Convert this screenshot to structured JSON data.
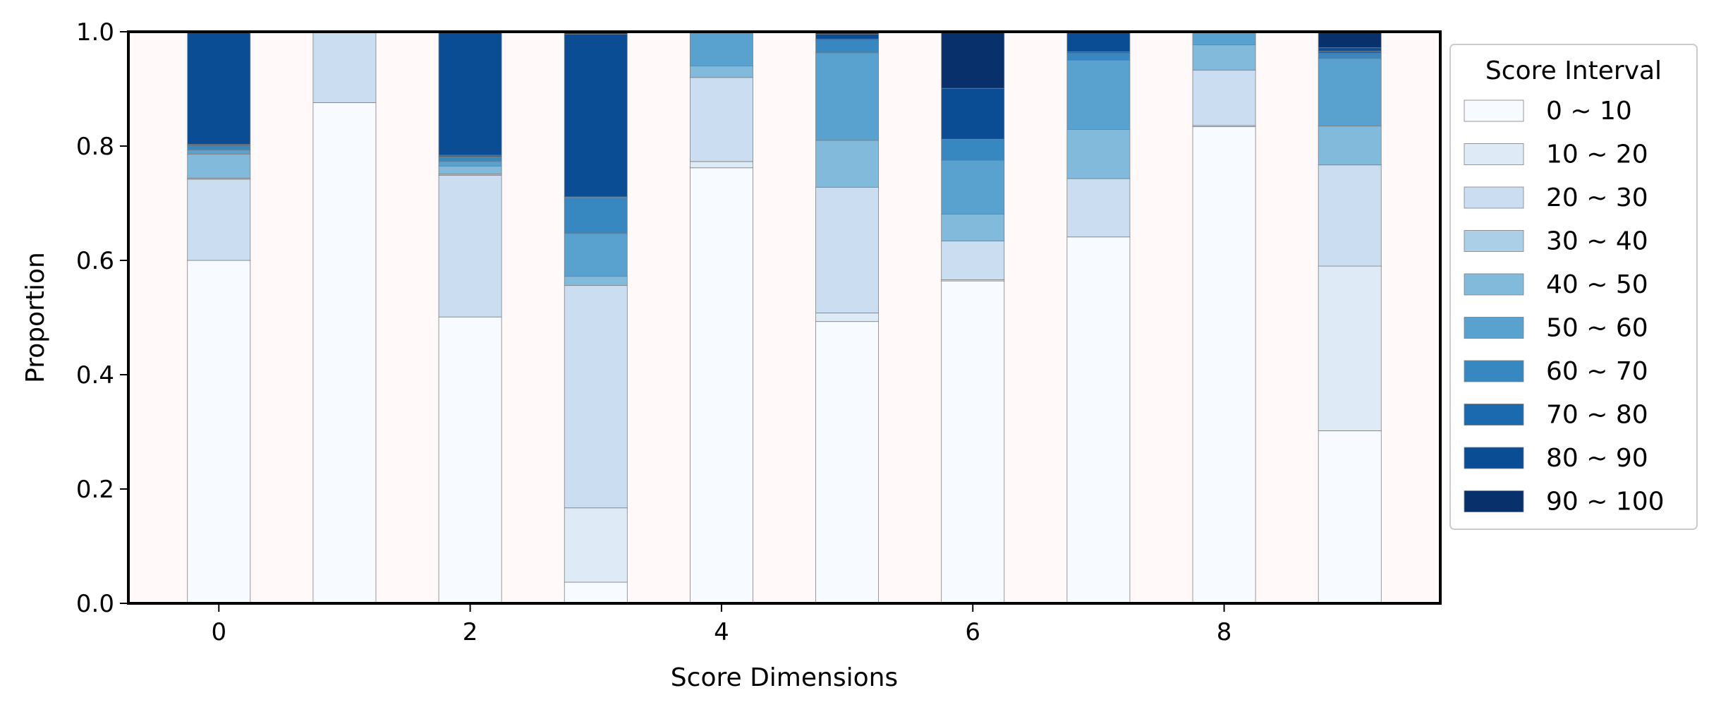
{
  "chart_data": {
    "type": "bar",
    "stacked": true,
    "normalized": true,
    "x": [
      0,
      1,
      2,
      3,
      4,
      5,
      6,
      7,
      8,
      9
    ],
    "xticks": [
      "0",
      "2",
      "4",
      "6",
      "8"
    ],
    "yticks": [
      "0.0",
      "0.2",
      "0.4",
      "0.6",
      "0.8",
      "1.0"
    ],
    "xlabel": "Score Dimensions",
    "ylabel": "Proportion",
    "ylim": [
      0,
      1
    ],
    "xlim": [
      -0.72,
      9.72
    ],
    "grid": false,
    "plot_background": "#fff9f9",
    "legend": {
      "title": "Score Interval",
      "placement": "right-outside-top"
    },
    "series": [
      {
        "name": "0 ~ 10",
        "color": "#f7fbff",
        "values": [
          0.6,
          0.876,
          0.501,
          0.037,
          0.762,
          0.493,
          0.564,
          0.641,
          0.834,
          0.302
        ]
      },
      {
        "name": "10 ~ 20",
        "color": "#deebf7",
        "values": [
          0.0,
          0.0,
          0.0,
          0.13,
          0.011,
          0.015,
          0.002,
          0.0,
          0.002,
          0.288
        ]
      },
      {
        "name": "20 ~ 30",
        "color": "#cbdef1",
        "values": [
          0.142,
          0.124,
          0.248,
          0.389,
          0.147,
          0.22,
          0.068,
          0.102,
          0.097,
          0.177
        ]
      },
      {
        "name": "30 ~ 40",
        "color": "#abcfe6",
        "values": [
          0.002,
          0.0,
          0.002,
          0.0,
          0.0,
          0.0,
          0.0,
          0.0,
          0.0,
          0.0
        ]
      },
      {
        "name": "40 ~ 50",
        "color": "#82badb",
        "values": [
          0.042,
          0.0,
          0.014,
          0.016,
          0.02,
          0.082,
          0.047,
          0.086,
          0.044,
          0.068
        ]
      },
      {
        "name": "50 ~ 60",
        "color": "#59a1cf",
        "values": [
          0.007,
          0.0,
          0.008,
          0.075,
          0.058,
          0.153,
          0.094,
          0.121,
          0.022,
          0.118
        ]
      },
      {
        "name": "60 ~ 70",
        "color": "#3787c0",
        "values": [
          0.008,
          0.0,
          0.008,
          0.063,
          0.0,
          0.022,
          0.037,
          0.012,
          0.0,
          0.009
        ]
      },
      {
        "name": "70 ~ 80",
        "color": "#1b69af",
        "values": [
          0.002,
          0.0,
          0.003,
          0.001,
          0.0,
          0.002,
          0.0,
          0.003,
          0.0,
          0.004
        ]
      },
      {
        "name": "80 ~ 90",
        "color": "#0b4d94",
        "values": [
          0.197,
          0.0,
          0.216,
          0.285,
          0.002,
          0.009,
          0.089,
          0.033,
          0.001,
          0.006
        ]
      },
      {
        "name": "90 ~ 100",
        "color": "#08306b",
        "values": [
          0.0,
          0.0,
          0.0,
          0.004,
          0.0,
          0.004,
          0.099,
          0.002,
          0.0,
          0.028
        ]
      }
    ]
  }
}
